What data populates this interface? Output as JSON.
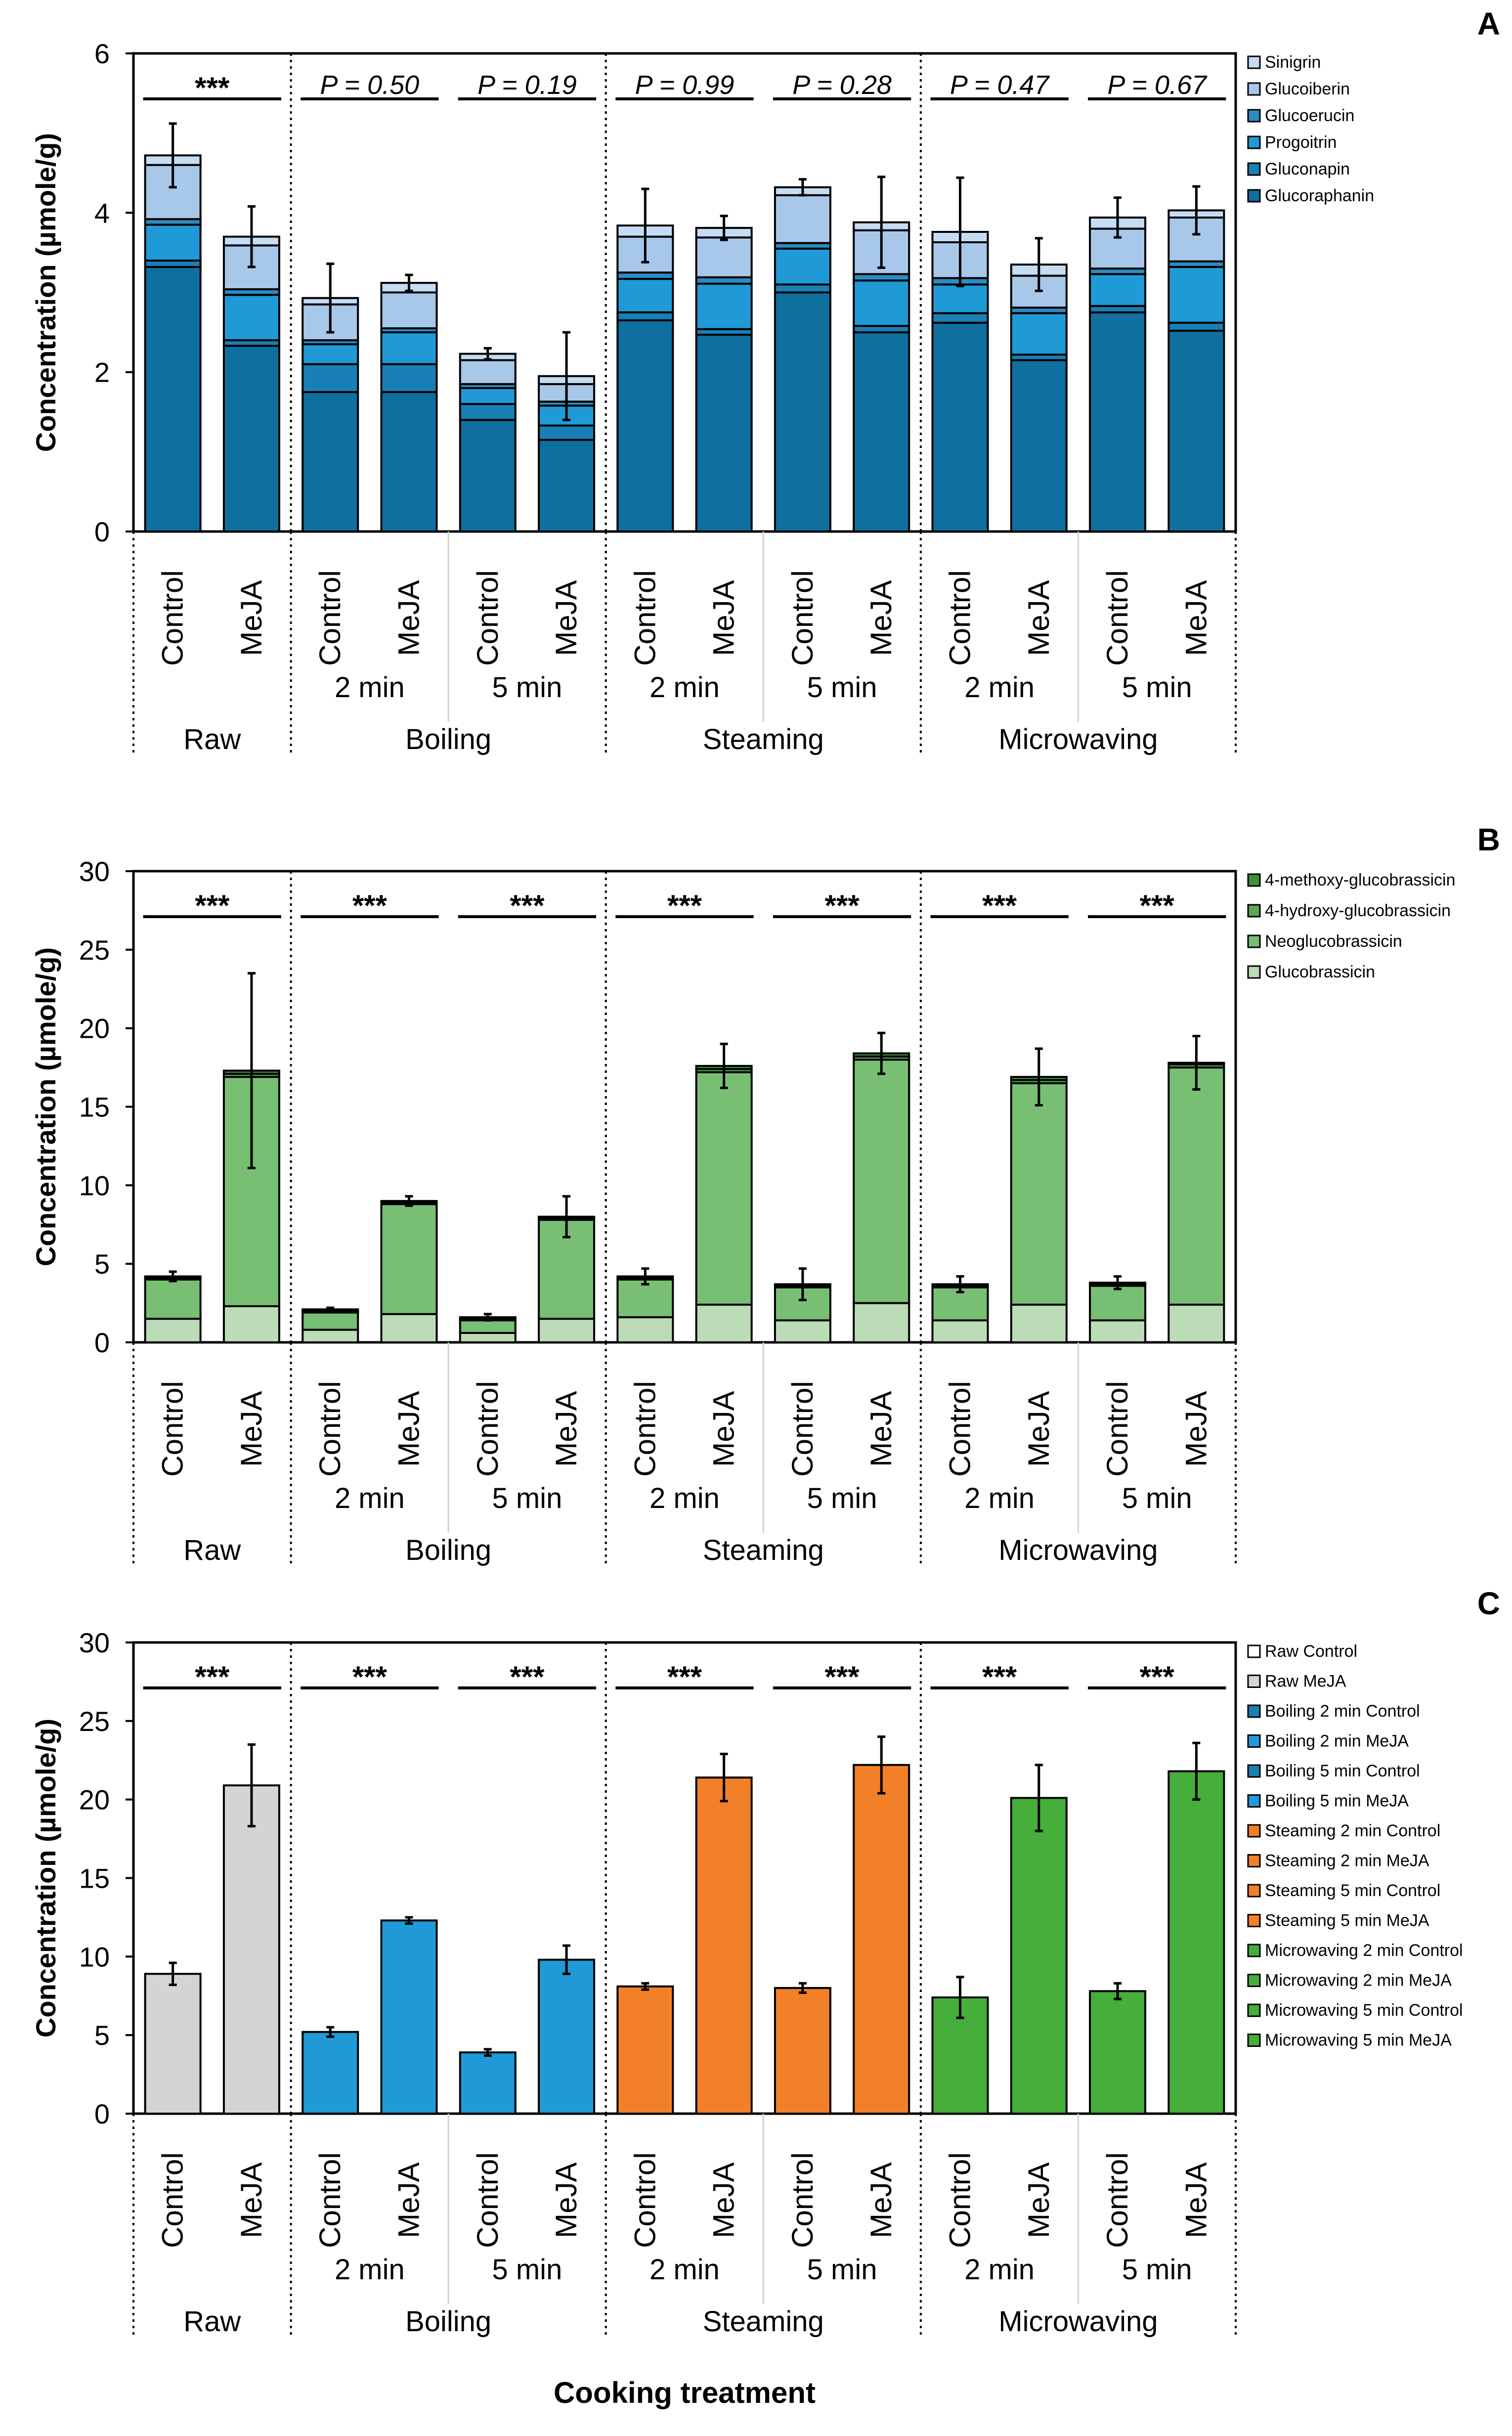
{
  "figure": {
    "xlabel": "Cooking treatment",
    "ylabel": "Concentration (µmole/g)",
    "treatment_labels": [
      "Control",
      "MeJA",
      "Control",
      "MeJA",
      "Control",
      "MeJA",
      "Control",
      "MeJA",
      "Control",
      "MeJA",
      "Control",
      "MeJA",
      "Control",
      "MeJA"
    ],
    "time_labels": [
      "2 min",
      "5 min",
      "2 min",
      "5 min",
      "2 min",
      "5 min"
    ],
    "method_labels": [
      "Raw",
      "Boiling",
      "Steaming",
      "Microwaving"
    ]
  },
  "chart_data": [
    {
      "panel": "A",
      "type": "bar",
      "stacked": true,
      "ylim": [
        0,
        6
      ],
      "yticks": [
        0,
        2,
        4,
        6
      ],
      "categories": [
        "Raw Control",
        "Raw MeJA",
        "Boiling 2 min Control",
        "Boiling 2 min MeJA",
        "Boiling 5 min Control",
        "Boiling 5 min MeJA",
        "Steaming 2 min Control",
        "Steaming 2 min MeJA",
        "Steaming 5 min Control",
        "Steaming 5 min MeJA",
        "Microwaving 2 min Control",
        "Microwaving 2 min MeJA",
        "Microwaving 5 min Control",
        "Microwaving 5 min MeJA"
      ],
      "series": [
        {
          "name": "Glucoraphanin",
          "color": "#0f6f9e",
          "values": [
            3.32,
            2.33,
            1.75,
            1.75,
            1.4,
            1.15,
            2.65,
            2.47,
            3.0,
            2.5,
            2.62,
            2.15,
            2.75,
            2.52
          ]
        },
        {
          "name": "Gluconapin",
          "color": "#1a7fb5",
          "values": [
            0.08,
            0.07,
            0.35,
            0.35,
            0.2,
            0.18,
            0.1,
            0.07,
            0.1,
            0.08,
            0.12,
            0.07,
            0.08,
            0.1
          ]
        },
        {
          "name": "Progoitrin",
          "color": "#1f9ad6",
          "values": [
            0.45,
            0.57,
            0.25,
            0.4,
            0.2,
            0.25,
            0.42,
            0.57,
            0.45,
            0.57,
            0.36,
            0.52,
            0.4,
            0.7
          ]
        },
        {
          "name": "Glucoerucin",
          "color": "#2e8bc0",
          "values": [
            0.07,
            0.07,
            0.05,
            0.05,
            0.05,
            0.05,
            0.08,
            0.08,
            0.07,
            0.08,
            0.08,
            0.07,
            0.07,
            0.07
          ]
        },
        {
          "name": "Glucoiberin",
          "color": "#a8c8ea",
          "values": [
            0.68,
            0.55,
            0.45,
            0.45,
            0.3,
            0.22,
            0.45,
            0.5,
            0.6,
            0.55,
            0.45,
            0.4,
            0.5,
            0.55
          ]
        },
        {
          "name": "Sinigrin",
          "color": "#c5dcf3",
          "values": [
            0.12,
            0.11,
            0.08,
            0.12,
            0.08,
            0.1,
            0.14,
            0.12,
            0.1,
            0.1,
            0.13,
            0.14,
            0.14,
            0.09
          ]
        }
      ],
      "totals": [
        4.72,
        3.7,
        2.93,
        3.12,
        2.23,
        1.95,
        3.84,
        3.81,
        4.32,
        3.88,
        3.76,
        3.35,
        3.94,
        4.03
      ],
      "errors": [
        0.4,
        0.38,
        0.43,
        0.1,
        0.07,
        0.55,
        0.46,
        0.15,
        0.1,
        0.57,
        0.68,
        0.33,
        0.25,
        0.3
      ],
      "annotations": [
        "***",
        "P = 0.50",
        "P = 0.19",
        "P = 0.99",
        "P = 0.28",
        "P = 0.47",
        "P = 0.67"
      ]
    },
    {
      "panel": "B",
      "type": "bar",
      "stacked": true,
      "ylim": [
        0,
        30
      ],
      "yticks": [
        0,
        5,
        10,
        15,
        20,
        25,
        30
      ],
      "categories": [
        "Raw Control",
        "Raw MeJA",
        "Boiling 2 min Control",
        "Boiling 2 min MeJA",
        "Boiling 5 min Control",
        "Boiling 5 min MeJA",
        "Steaming 2 min Control",
        "Steaming 2 min MeJA",
        "Steaming 5 min Control",
        "Steaming 5 min MeJA",
        "Microwaving 2 min Control",
        "Microwaving 2 min MeJA",
        "Microwaving 5 min Control",
        "Microwaving 5 min MeJA"
      ],
      "series": [
        {
          "name": "Glucobrassicin",
          "color": "#bcdcb8",
          "values": [
            1.5,
            2.3,
            0.8,
            1.8,
            0.6,
            1.5,
            1.6,
            2.4,
            1.4,
            2.5,
            1.4,
            2.4,
            1.4,
            2.4
          ]
        },
        {
          "name": "Neoglucobrassicin",
          "color": "#78bf74",
          "values": [
            2.5,
            14.6,
            1.1,
            7.0,
            0.8,
            6.3,
            2.4,
            14.8,
            2.1,
            15.5,
            2.1,
            14.1,
            2.2,
            15.1
          ]
        },
        {
          "name": "4-hydroxy-glucobrassicin",
          "color": "#5aa55a",
          "values": [
            0.1,
            0.2,
            0.1,
            0.1,
            0.1,
            0.1,
            0.1,
            0.2,
            0.1,
            0.2,
            0.1,
            0.2,
            0.1,
            0.2
          ]
        },
        {
          "name": "4-methoxy-glucobrassicin",
          "color": "#3f8f3f",
          "values": [
            0.1,
            0.2,
            0.1,
            0.1,
            0.1,
            0.1,
            0.1,
            0.2,
            0.1,
            0.2,
            0.1,
            0.2,
            0.1,
            0.1
          ]
        }
      ],
      "totals": [
        4.2,
        17.3,
        2.1,
        9.0,
        1.6,
        8.0,
        4.2,
        17.6,
        3.7,
        18.4,
        3.7,
        16.9,
        3.8,
        17.8
      ],
      "errors": [
        0.3,
        6.2,
        0.1,
        0.3,
        0.2,
        1.3,
        0.5,
        1.4,
        1.0,
        1.3,
        0.5,
        1.8,
        0.4,
        1.7
      ],
      "annotations": [
        "***",
        "***",
        "***",
        "***",
        "***",
        "***",
        "***"
      ]
    },
    {
      "panel": "C",
      "type": "bar",
      "stacked": false,
      "ylim": [
        0,
        30
      ],
      "yticks": [
        0,
        5,
        10,
        15,
        20,
        25,
        30
      ],
      "categories": [
        "Raw Control",
        "Raw MeJA",
        "Boiling 2 min Control",
        "Boiling 2 min MeJA",
        "Boiling  5 min Control",
        "Boiling  5 min MeJA",
        "Steaming 2 min Control",
        "Steaming 2 min MeJA",
        "Steaming  5 min Control",
        "Steaming  5 min MeJA",
        "Microwaving 2 min Control",
        "Microwaving 2 min MeJA",
        "Microwaving  5 min Control",
        "Microwaving  5 min MeJA"
      ],
      "values": [
        8.9,
        20.9,
        5.2,
        12.3,
        3.9,
        9.8,
        8.1,
        21.4,
        8.0,
        22.2,
        7.4,
        20.1,
        7.8,
        21.8
      ],
      "errors": [
        0.7,
        2.6,
        0.3,
        0.2,
        0.2,
        0.9,
        0.2,
        1.5,
        0.3,
        1.8,
        1.3,
        2.1,
        0.5,
        1.8
      ],
      "colors": [
        "#d4d4d4",
        "#d4d4d4",
        "#1f9ad6",
        "#1f9ad6",
        "#1f9ad6",
        "#1f9ad6",
        "#f28028",
        "#f28028",
        "#f28028",
        "#f28028",
        "#46ae3a",
        "#46ae3a",
        "#46ae3a",
        "#46ae3a"
      ],
      "legend_fills": [
        "#ffffff",
        "#d4d4d4",
        "#1a7fb5",
        "#1f9ad6",
        "#1a7fb5",
        "#1f9ad6",
        "#f28028",
        "#f28028",
        "#f28028",
        "#f28028",
        "#46ae3a",
        "#46ae3a",
        "#46ae3a",
        "#46ae3a"
      ],
      "annotations": [
        "***",
        "***",
        "***",
        "***",
        "***",
        "***",
        "***"
      ]
    }
  ]
}
